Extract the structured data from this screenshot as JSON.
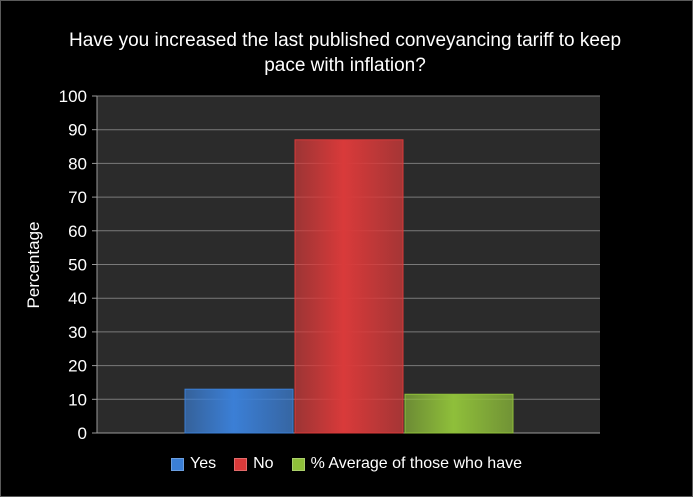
{
  "chart_data": {
    "type": "bar",
    "title": "Have you increased the last published conveyancing tariff to keep pace with inflation?",
    "ylabel": "Percentage",
    "xlabel": "",
    "ylim": [
      0,
      100
    ],
    "yticks": [
      0,
      10,
      20,
      30,
      40,
      50,
      60,
      70,
      80,
      90,
      100
    ],
    "grid": true,
    "legend_position": "bottom",
    "series": [
      {
        "name": "Yes",
        "value": 13,
        "color": "#3b7fd6"
      },
      {
        "name": "No",
        "value": 87,
        "color": "#d93a3a"
      },
      {
        "name": "% Average of those who have",
        "value": 11.5,
        "color": "#8fbf3a"
      }
    ]
  }
}
